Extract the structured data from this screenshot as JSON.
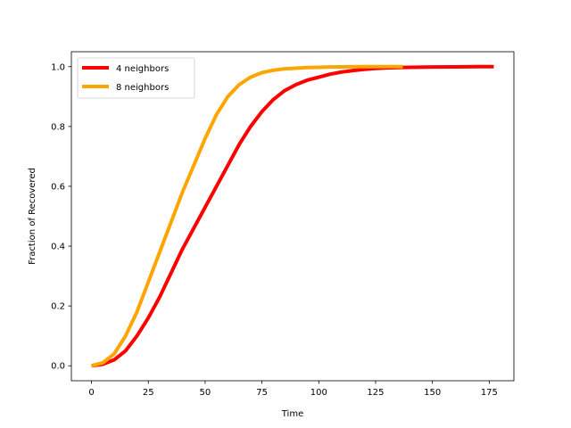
{
  "chart_data": {
    "type": "line",
    "title": "",
    "xlabel": "Time",
    "ylabel": "Fraction of Recovered",
    "xlim": [
      -8.85,
      185.85
    ],
    "ylim": [
      -0.05,
      1.05
    ],
    "xticks": [
      0,
      25,
      50,
      75,
      100,
      125,
      150,
      175
    ],
    "yticks": [
      0.0,
      0.2,
      0.4,
      0.6,
      0.8,
      1.0
    ],
    "xtick_labels": [
      "0",
      "25",
      "50",
      "75",
      "100",
      "125",
      "150",
      "175"
    ],
    "ytick_labels": [
      "0.0",
      "0.2",
      "0.4",
      "0.6",
      "0.8",
      "1.0"
    ],
    "legend_position": "top-left",
    "grid": false,
    "series": [
      {
        "name": "4 neighbors",
        "color": "#ff0000",
        "x": [
          0,
          5,
          10,
          15,
          20,
          25,
          30,
          35,
          40,
          45,
          50,
          55,
          60,
          65,
          70,
          75,
          80,
          85,
          90,
          95,
          100,
          105,
          110,
          115,
          120,
          125,
          130,
          135,
          140,
          150,
          160,
          170,
          177
        ],
        "y": [
          0.0,
          0.005,
          0.02,
          0.05,
          0.1,
          0.16,
          0.23,
          0.31,
          0.39,
          0.46,
          0.53,
          0.6,
          0.67,
          0.74,
          0.8,
          0.85,
          0.89,
          0.92,
          0.94,
          0.955,
          0.965,
          0.975,
          0.982,
          0.987,
          0.991,
          0.994,
          0.996,
          0.997,
          0.998,
          0.999,
          0.9995,
          1.0,
          1.0
        ]
      },
      {
        "name": "8 neighbors",
        "color": "#ffa500",
        "x": [
          0,
          5,
          10,
          15,
          20,
          25,
          30,
          35,
          40,
          45,
          50,
          55,
          60,
          65,
          70,
          75,
          80,
          85,
          90,
          95,
          100,
          105,
          110,
          120,
          130,
          137
        ],
        "y": [
          0.0,
          0.01,
          0.04,
          0.1,
          0.18,
          0.28,
          0.38,
          0.48,
          0.58,
          0.67,
          0.76,
          0.84,
          0.9,
          0.94,
          0.965,
          0.98,
          0.988,
          0.993,
          0.995,
          0.997,
          0.998,
          0.999,
          0.9995,
          1.0,
          1.0,
          1.0
        ]
      }
    ]
  }
}
